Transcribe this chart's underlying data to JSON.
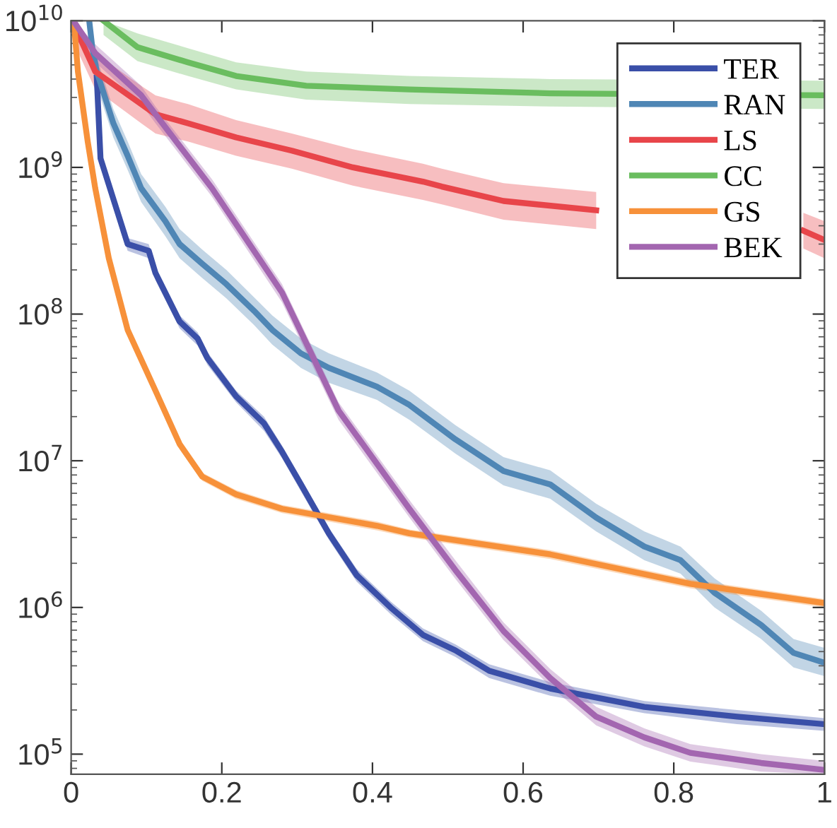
{
  "chart_data": {
    "type": "line",
    "log": "y",
    "xlim": [
      0,
      1
    ],
    "ylim": [
      73000,
      10000000000
    ],
    "xticks": [
      0,
      0.2,
      0.4,
      0.6,
      0.8,
      1
    ],
    "yticks": [
      {
        "value": 100000,
        "label": "10$^{5}$"
      },
      {
        "value": 1000000,
        "label": "10$^{6}$"
      },
      {
        "value": 10000000,
        "label": "10$^{7}$"
      },
      {
        "value": 100000000,
        "label": "10$^{8}$"
      },
      {
        "value": 1000000000,
        "label": "10$^{9}$"
      },
      {
        "value": 10000000000,
        "label": "10$^{10}$"
      }
    ],
    "grid": false,
    "legend": "top right",
    "marker": "none",
    "line_style": "solid",
    "series": [
      {
        "name": "TER",
        "color": "#3a4fa8",
        "x": [
          0.034,
          0.039,
          0.075,
          0.103,
          0.112,
          0.144,
          0.168,
          0.181,
          0.219,
          0.256,
          0.28,
          0.305,
          0.342,
          0.379,
          0.424,
          0.467,
          0.51,
          0.555,
          0.636,
          0.761,
          0.884,
          1.0
        ],
        "values": [
          4100000000.0,
          1150000000.0,
          300000000.0,
          270000000.0,
          190000000.0,
          89000000.0,
          68000000.0,
          50000000.0,
          27500000.0,
          18000000.0,
          11500000.0,
          6900000.0,
          3200000.0,
          1660000.0,
          1000000.0,
          650000.0,
          510000.0,
          370000.0,
          280000.0,
          210000.0,
          180000.0,
          160000.0
        ],
        "lower": [
          3700000000.0,
          1040000000.0,
          270000000.0,
          240000000.0,
          170000000.0,
          80000000.0,
          61000000.0,
          45000000.0,
          25000000.0,
          16000000.0,
          10400000.0,
          6200000.0,
          2900000.0,
          1500000.0,
          900000.0,
          590000.0,
          460000.0,
          330000.0,
          250000.0,
          190000.0,
          160000.0,
          144000.0
        ],
        "upper": [
          4500000000.0,
          1270000000.0,
          330000000.0,
          300000000.0,
          210000000.0,
          98000000.0,
          75000000.0,
          55000000.0,
          30000000.0,
          20000000.0,
          12700000.0,
          7600000.0,
          3500000.0,
          1830000.0,
          1100000.0,
          720000.0,
          560000.0,
          410000.0,
          310000.0,
          230000.0,
          200000.0,
          176000.0
        ]
      },
      {
        "name": "RAN",
        "color": "#4f86b5",
        "x": [
          0.024,
          0.028,
          0.034,
          0.056,
          0.075,
          0.093,
          0.125,
          0.144,
          0.174,
          0.206,
          0.243,
          0.267,
          0.305,
          0.342,
          0.406,
          0.449,
          0.51,
          0.574,
          0.636,
          0.697,
          0.761,
          0.809,
          0.854,
          0.916,
          0.959,
          1.0
        ],
        "values": [
          10000000000.0,
          6600000000.0,
          4500000000.0,
          2000000000.0,
          1200000000.0,
          720000000.0,
          430000000.0,
          300000000.0,
          220000000.0,
          160000000.0,
          105000000.0,
          78000000.0,
          54000000.0,
          43000000.0,
          32000000.0,
          24000000.0,
          14000000.0,
          8500000.0,
          6900000.0,
          4100000.0,
          2600000.0,
          2100000.0,
          1260000.0,
          760000.0,
          490000.0,
          420000.0
        ],
        "lower": [
          8000000000.0,
          5300000000.0,
          3600000000.0,
          1600000000.0,
          960000000.0,
          580000000.0,
          340000000.0,
          240000000.0,
          176000000.0,
          128000000.0,
          84000000.0,
          62000000.0,
          43000000.0,
          34000000.0,
          26000000.0,
          19000000.0,
          11200000.0,
          6800000.0,
          5500000.0,
          3300000.0,
          2100000.0,
          1700000.0,
          1000000.0,
          610000.0,
          390000.0,
          340000.0
        ],
        "upper": [
          10000000000.0,
          8200000000.0,
          5600000000.0,
          2500000000.0,
          1500000000.0,
          900000000.0,
          540000000.0,
          380000000.0,
          275000000.0,
          200000000.0,
          130000000.0,
          98000000.0,
          68000000.0,
          54000000.0,
          40000000.0,
          30000000.0,
          17500000.0,
          10600000.0,
          8600000.0,
          5100000.0,
          3300000.0,
          2600000.0,
          1580000.0,
          950000.0,
          610000.0,
          530000.0
        ]
      },
      {
        "name": "LS",
        "color": "#e8454a",
        "x": [
          0.004,
          0.032,
          0.093,
          0.112,
          0.155,
          0.219,
          0.293,
          0.374,
          0.467,
          0.492,
          0.574,
          0.697,
          0.8,
          0.916,
          0.972,
          1.0
        ],
        "values": [
          9300000000.0,
          4500000000.0,
          2700000000.0,
          2300000000.0,
          2000000000.0,
          1600000000.0,
          1300000000.0,
          1000000000.0,
          800000000.0,
          740000000.0,
          590000000.0,
          510000000.0,
          null,
          null,
          370000000.0,
          320000000.0
        ],
        "lower": [
          7000000000.0,
          3400000000.0,
          2000000000.0,
          1700000000.0,
          1500000000.0,
          1200000000.0,
          980000000.0,
          750000000.0,
          600000000.0,
          560000000.0,
          440000000.0,
          380000000.0,
          null,
          null,
          280000000.0,
          240000000.0
        ],
        "upper": [
          10000000000.0,
          6000000000.0,
          3600000000.0,
          3100000000.0,
          2700000000.0,
          2100000000.0,
          1700000000.0,
          1330000000.0,
          1060000000.0,
          980000000.0,
          780000000.0,
          680000000.0,
          null,
          null,
          490000000.0,
          430000000.0
        ]
      },
      {
        "name": "CC",
        "color": "#6abd5f",
        "x": [
          0.043,
          0.088,
          0.155,
          0.219,
          0.312,
          0.449,
          0.636,
          1.0
        ],
        "values": [
          10000000000.0,
          6600000000.0,
          5200000000.0,
          4200000000.0,
          3600000000.0,
          3400000000.0,
          3200000000.0,
          3100000000.0
        ],
        "lower": [
          8000000000.0,
          5300000000.0,
          4200000000.0,
          3400000000.0,
          2900000000.0,
          2700000000.0,
          2600000000.0,
          2500000000.0
        ],
        "upper": [
          10000000000.0,
          8200000000.0,
          6500000000.0,
          5200000000.0,
          4500000000.0,
          4200000000.0,
          4000000000.0,
          3900000000.0
        ]
      },
      {
        "name": "GS",
        "color": "#f7913a",
        "x": [
          0.004,
          0.009,
          0.022,
          0.032,
          0.05,
          0.075,
          0.112,
          0.144,
          0.174,
          0.219,
          0.28,
          0.406,
          0.449,
          0.636,
          0.822,
          1.0
        ],
        "values": [
          9300000000.0,
          4500000000.0,
          1500000000.0,
          720000000.0,
          240000000.0,
          78000000.0,
          30000000.0,
          13000000.0,
          7800000.0,
          5900000.0,
          4700000.0,
          3600000.0,
          3200000.0,
          2300000.0,
          1450000.0,
          1070000.0
        ],
        "lower": [
          8600000000.0,
          4200000000.0,
          1400000000.0,
          670000000.0,
          220000000.0,
          73000000.0,
          28000000.0,
          12000000.0,
          7300000.0,
          5500000.0,
          4400000.0,
          3350000.0,
          3000000.0,
          2140000.0,
          1350000.0,
          1000000.0
        ],
        "upper": [
          9950000000.0,
          4800000000.0,
          1600000000.0,
          770000000.0,
          260000000.0,
          83000000.0,
          32000000.0,
          14000000.0,
          8300000.0,
          6300000.0,
          5000000.0,
          3850000.0,
          3400000.0,
          2460000.0,
          1550000.0,
          1140000.0
        ]
      },
      {
        "name": "BEK",
        "color": "#a366b0",
        "x": [
          0.004,
          0.032,
          0.093,
          0.112,
          0.187,
          0.28,
          0.355,
          0.449,
          0.51,
          0.574,
          0.636,
          0.697,
          0.761,
          0.822,
          0.916,
          1.0
        ],
        "values": [
          9800000000.0,
          6000000000.0,
          3100000000.0,
          2300000000.0,
          720000000.0,
          140000000.0,
          22000000.0,
          4700000.0,
          1800000.0,
          690000.0,
          330000.0,
          180000.0,
          130000.0,
          102000.0,
          87000.0,
          78000.0
        ],
        "lower": [
          8500000000.0,
          5200000000.0,
          2700000000.0,
          2000000000.0,
          630000000.0,
          120000000.0,
          19000000.0,
          4100000.0,
          1570000.0,
          600000.0,
          290000.0,
          157000.0,
          113000.0,
          89000.0,
          76000.0,
          73000.0
        ],
        "upper": [
          10000000000.0,
          6900000000.0,
          3600000000.0,
          2600000000.0,
          830000000.0,
          160000000.0,
          25000000.0,
          5400000.0,
          2100000.0,
          790000.0,
          380000.0,
          210000.0,
          150000.0,
          117000.0,
          100000.0,
          90000.0
        ]
      }
    ]
  }
}
